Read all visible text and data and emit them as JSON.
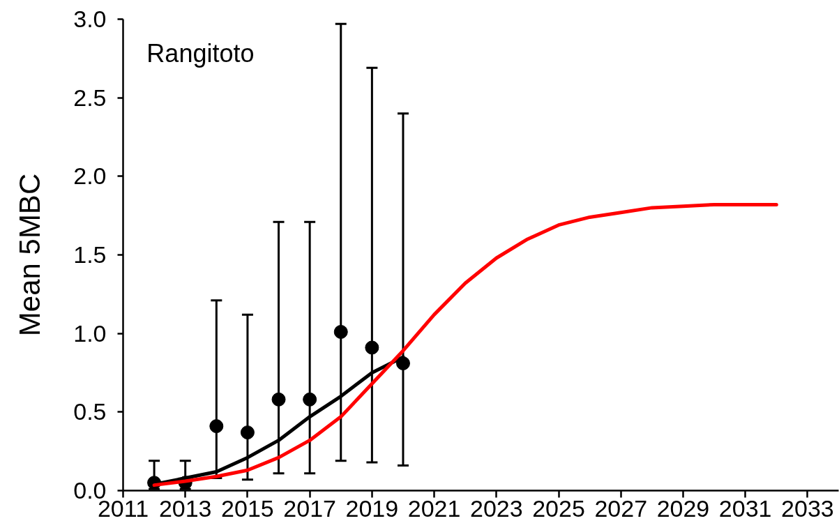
{
  "chart_data": {
    "type": "scatter",
    "ylabel": "Mean 5MBC",
    "annotations": [
      "Rangitoto"
    ],
    "xlim": [
      2011,
      2034
    ],
    "xticks": [
      2011,
      2013,
      2015,
      2017,
      2019,
      2021,
      2023,
      2025,
      2027,
      2029,
      2031,
      2033
    ],
    "ylim": [
      0,
      3
    ],
    "yticks": [
      {
        "value": 0,
        "label": "0.0"
      },
      0.5,
      {
        "value": 1,
        "label": "1.0"
      },
      1.5,
      {
        "value": 2,
        "label": "2.0"
      },
      2.5,
      {
        "value": 3,
        "label": "3.0"
      }
    ],
    "series": [
      {
        "color": "#000000",
        "marker": "circle",
        "x": [
          2012,
          2013,
          2014,
          2015,
          2016,
          2017,
          2018,
          2019,
          2020
        ],
        "values": [
          0.05,
          0.05,
          0.41,
          0.37,
          0.58,
          0.58,
          1.01,
          0.91,
          0.81
        ],
        "errors": [
          [
            0.01,
            0.19
          ],
          [
            0.01,
            0.19
          ],
          [
            0.08,
            1.21
          ],
          [
            0.07,
            1.12
          ],
          [
            0.11,
            1.71
          ],
          [
            0.11,
            1.71
          ],
          [
            0.19,
            2.97
          ],
          [
            0.18,
            2.69
          ],
          [
            0.16,
            2.4
          ]
        ]
      },
      {
        "type": "line",
        "color": "#000000",
        "x": [
          2012,
          2013,
          2014,
          2015,
          2016,
          2017,
          2018,
          2019,
          2020
        ],
        "values": [
          0.04,
          0.08,
          0.12,
          0.21,
          0.32,
          0.47,
          0.6,
          0.75,
          0.85
        ]
      },
      {
        "type": "line",
        "color": "#ff0000",
        "x": [
          2012,
          2013,
          2014,
          2015,
          2016,
          2017,
          2018,
          2019,
          2020,
          2021,
          2022,
          2023,
          2024,
          2025,
          2026,
          2027,
          2028,
          2029,
          2030,
          2031,
          2032
        ],
        "values": [
          0.035,
          0.06,
          0.09,
          0.13,
          0.21,
          0.32,
          0.47,
          0.68,
          0.89,
          1.12,
          1.32,
          1.48,
          1.6,
          1.69,
          1.74,
          1.77,
          1.8,
          1.81,
          1.82,
          1.82,
          1.82
        ]
      }
    ]
  }
}
